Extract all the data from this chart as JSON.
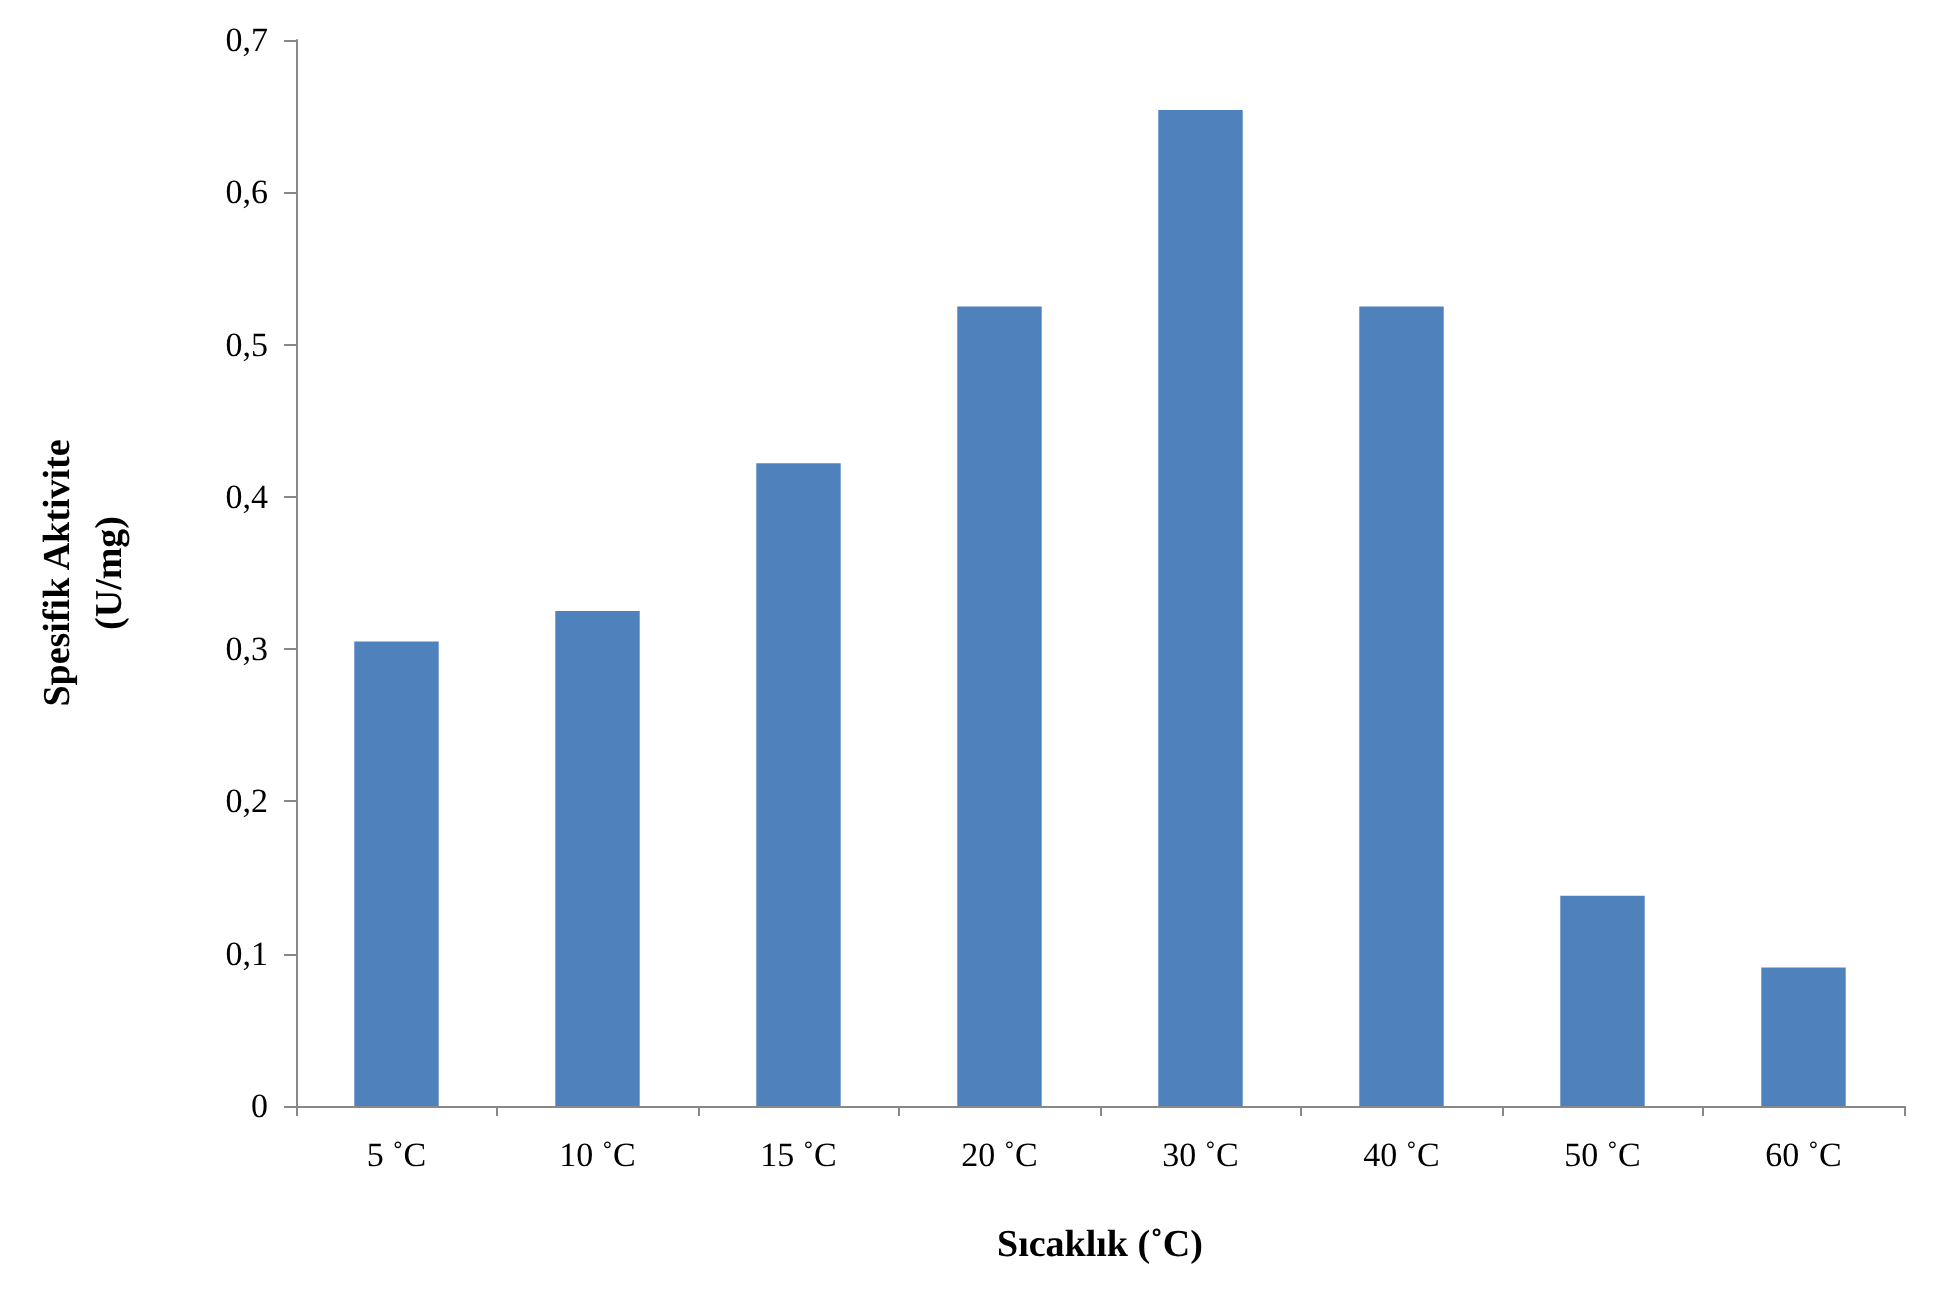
{
  "chart_data": {
    "type": "bar",
    "xlabel": "Sıcaklık (˚C)",
    "ylabel": "Spesifik Aktivite\n(U/mg)",
    "categories": [
      "5 ˚C",
      "10 ˚C",
      "15 ˚C",
      "20 ˚C",
      "30 ˚C",
      "40 ˚C",
      "50 ˚C",
      "60 ˚C"
    ],
    "values": [
      0.305,
      0.325,
      0.422,
      0.525,
      0.654,
      0.525,
      0.138,
      0.091
    ],
    "color": "#4f81bd",
    "ylim": [
      0,
      0.7
    ],
    "yticks": [
      {
        "value": 0,
        "label": "0"
      },
      {
        "value": 0.1,
        "label": "0,1"
      },
      {
        "value": 0.2,
        "label": "0,2"
      },
      {
        "value": 0.3,
        "label": "0,3"
      },
      {
        "value": 0.4,
        "label": "0,4"
      },
      {
        "value": 0.5,
        "label": "0,5"
      },
      {
        "value": 0.6,
        "label": "0,6"
      },
      {
        "value": 0.7,
        "label": "0,7"
      }
    ],
    "grid": false
  }
}
